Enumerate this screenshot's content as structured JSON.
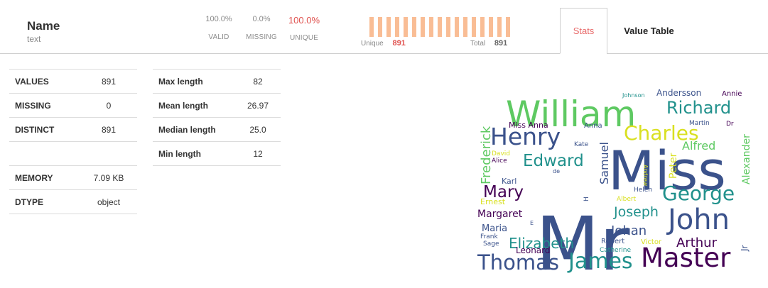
{
  "variable": {
    "name": "Name",
    "type": "text"
  },
  "metrics": [
    {
      "value": "100.0%",
      "label": "VALID"
    },
    {
      "value": "0.0%",
      "label": "MISSING"
    },
    {
      "value": "100.0%",
      "label": "UNIQUE"
    }
  ],
  "unique_bar": {
    "unique_label": "Unique",
    "unique_value": "891",
    "total_label": "Total",
    "total_value": "891",
    "unique_fraction": 1.0
  },
  "tabs": {
    "stats": "Stats",
    "value_table": "Value Table",
    "active": "Stats"
  },
  "stats_left": {
    "rows": [
      {
        "key": "VALUES",
        "value": "891"
      },
      {
        "key": "MISSING",
        "value": "0"
      },
      {
        "key": "DISTINCT",
        "value": "891"
      },
      {
        "key": "MEMORY",
        "value": "7.09 KB"
      },
      {
        "key": "DTYPE",
        "value": "object"
      }
    ]
  },
  "stats_right": {
    "rows": [
      {
        "key": "Max length",
        "value": "82"
      },
      {
        "key": "Mean length",
        "value": "26.97"
      },
      {
        "key": "Median length",
        "value": "25.0"
      },
      {
        "key": "Min length",
        "value": "12"
      }
    ]
  },
  "wordcloud": {
    "words": [
      "Mr",
      "Miss",
      "William",
      "Henry",
      "Master",
      "John",
      "James",
      "Thomas",
      "George",
      "Charles",
      "Richard",
      "Edward",
      "Mary",
      "Joseph",
      "Elizabeth",
      "Arthur",
      "Frederick",
      "Johan",
      "Margaret",
      "Samuel",
      "Peter",
      "Alexander",
      "Alfred",
      "Andersson",
      "Miss Anna",
      "Anna",
      "Maria",
      "Leonard",
      "Karl",
      "Ernest",
      "Helen",
      "Albert",
      "Robert",
      "Victor",
      "Catherine",
      "Frank",
      "Sage",
      "Annie",
      "Johnson",
      "Martin",
      "Dr",
      "Kate",
      "David",
      "Alice",
      "de",
      "Andrew",
      "H",
      "E",
      "Jr"
    ],
    "colors": {
      "dark_purple": "#440154",
      "indigo": "#3b528b",
      "teal": "#21918c",
      "green": "#5ec962",
      "yellow": "#d9e021"
    }
  }
}
